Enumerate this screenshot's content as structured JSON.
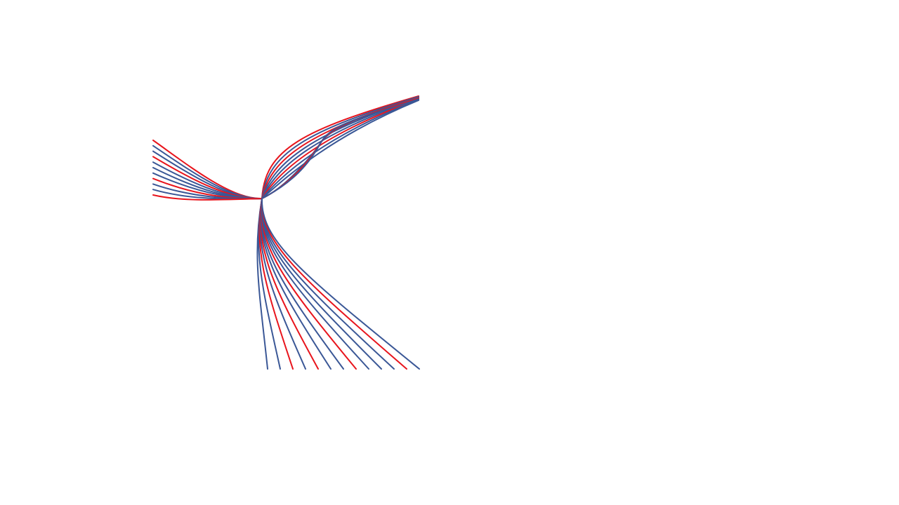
{
  "figure": {
    "description_visible_text": "",
    "colors": {
      "red": "#e8141c",
      "blue": "#3a5796",
      "background": "#ffffff"
    },
    "curve_groups": [
      {
        "name": "top-right-bundle",
        "colors": [
          "red",
          "blue",
          "red",
          "blue",
          "blue",
          "red",
          "blue",
          "blue"
        ]
      },
      {
        "name": "left-bundle",
        "colors": [
          "red",
          "blue",
          "blue",
          "red",
          "blue",
          "blue",
          "blue",
          "red",
          "blue",
          "blue",
          "red"
        ]
      },
      {
        "name": "bottom-bundle",
        "colors": [
          "blue",
          "blue",
          "red",
          "blue",
          "red",
          "blue",
          "blue",
          "red",
          "blue",
          "blue",
          "blue",
          "red",
          "blue"
        ]
      }
    ]
  }
}
